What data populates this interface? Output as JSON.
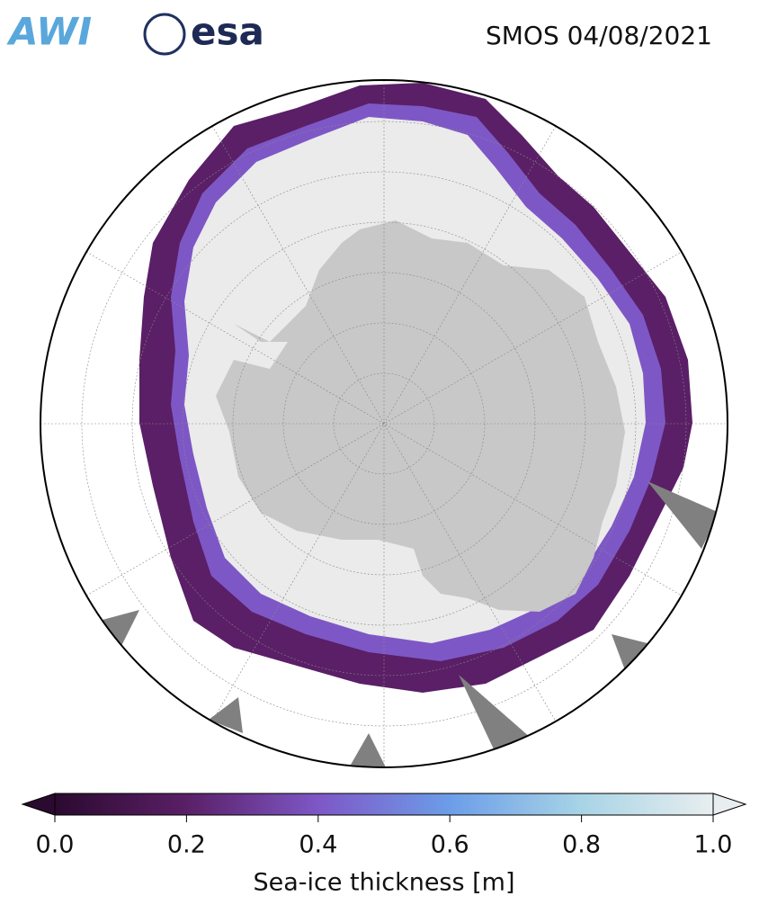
{
  "header": {
    "logos": [
      "AWI",
      "esa"
    ],
    "title": "SMOS 04/08/2021"
  },
  "colorbar": {
    "label": "Sea-ice thickness [m]",
    "xlim": [
      0,
      1
    ],
    "ticks": [
      {
        "value": 0,
        "label": "0.0"
      },
      {
        "value": 0.2,
        "label": "0.2"
      },
      {
        "value": 0.4,
        "label": "0.4"
      },
      {
        "value": 0.6,
        "label": "0.6"
      },
      {
        "value": 0.8,
        "label": "0.8"
      },
      {
        "value": 1,
        "label": "1.0"
      }
    ],
    "colors": [
      "#2b0a2f",
      "#5a1f66",
      "#7e57c6",
      "#6c9de8",
      "#a8d4e6",
      "#e8eeef"
    ]
  }
}
